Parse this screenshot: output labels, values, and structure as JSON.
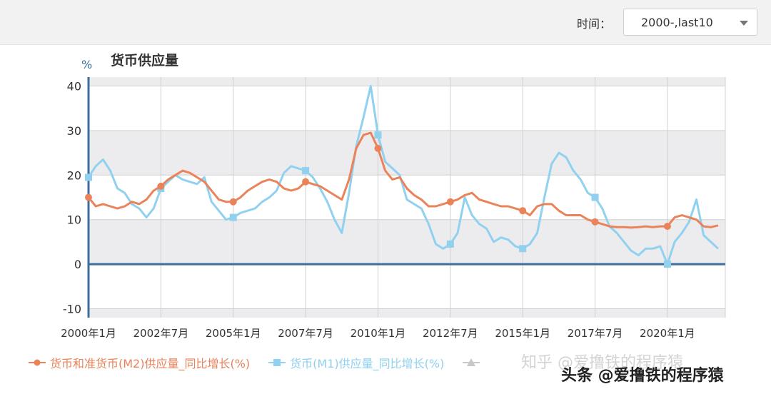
{
  "toolbar": {
    "time_label": "时间：",
    "range_select_value": "2000-,last10"
  },
  "chart": {
    "title": "货币供应量",
    "unit": "%"
  },
  "legend": [
    {
      "label": "货币和准货币(M2)供应量_同比增长(%)",
      "color": "#ea8359"
    },
    {
      "label": "货币(M1)供应量_同比增长(%)",
      "color": "#90d1f0"
    },
    {
      "label": "",
      "color": "#c8c8c8"
    }
  ],
  "watermark": {
    "line1": "知乎 @爱撸铁的程序猿",
    "line2": "头条 @爱撸铁的程序猿"
  },
  "colors": {
    "m2": "#ea8359",
    "m1": "#90d1f0",
    "axis": "#3b6e9c",
    "band": "#ececee",
    "grid": "#d0d0d0"
  },
  "chart_data": {
    "type": "line",
    "title": "货币供应量",
    "ylabel": "%",
    "ylim": [
      -12,
      42
    ],
    "y_ticks": [
      40,
      30,
      20,
      10,
      0,
      -10
    ],
    "x_ticks": [
      {
        "label": "2000年1月",
        "t": 2000.0
      },
      {
        "label": "2002年7月",
        "t": 2002.5
      },
      {
        "label": "2005年1月",
        "t": 2005.0
      },
      {
        "label": "2007年7月",
        "t": 2007.5
      },
      {
        "label": "2010年1月",
        "t": 2010.0
      },
      {
        "label": "2012年7月",
        "t": 2012.5
      },
      {
        "label": "2015年1月",
        "t": 2015.0
      },
      {
        "label": "2017年7月",
        "t": 2017.5
      },
      {
        "label": "2020年1月",
        "t": 2020.0
      }
    ],
    "xlim": [
      2000.0,
      2022.0
    ],
    "legend_position": "bottom",
    "grid": true,
    "series": [
      {
        "name": "货币和准货币(M2)供应量_同比增长(%)",
        "x": [
          2000.0,
          2000.25,
          2000.5,
          2000.75,
          2001.0,
          2001.25,
          2001.5,
          2001.75,
          2002.0,
          2002.25,
          2002.5,
          2002.75,
          2003.0,
          2003.25,
          2003.5,
          2003.75,
          2004.0,
          2004.25,
          2004.5,
          2004.75,
          2005.0,
          2005.25,
          2005.5,
          2005.75,
          2006.0,
          2006.25,
          2006.5,
          2006.75,
          2007.0,
          2007.25,
          2007.5,
          2007.75,
          2008.0,
          2008.25,
          2008.5,
          2008.75,
          2009.0,
          2009.25,
          2009.5,
          2009.75,
          2010.0,
          2010.25,
          2010.5,
          2010.75,
          2011.0,
          2011.25,
          2011.5,
          2011.75,
          2012.0,
          2012.25,
          2012.5,
          2012.75,
          2013.0,
          2013.25,
          2013.5,
          2013.75,
          2014.0,
          2014.25,
          2014.5,
          2014.75,
          2015.0,
          2015.25,
          2015.5,
          2015.75,
          2016.0,
          2016.25,
          2016.5,
          2016.75,
          2017.0,
          2017.25,
          2017.5,
          2017.75,
          2018.0,
          2018.25,
          2018.5,
          2018.75,
          2019.0,
          2019.25,
          2019.5,
          2019.75,
          2020.0,
          2020.25,
          2020.5,
          2020.75,
          2021.0,
          2021.25,
          2021.5,
          2021.75
        ],
        "values": [
          15.0,
          13.0,
          13.5,
          13.0,
          12.5,
          13.0,
          14.0,
          13.5,
          14.5,
          16.5,
          17.5,
          19.0,
          20.0,
          21.0,
          20.5,
          19.5,
          18.5,
          16.5,
          14.5,
          14.0,
          14.0,
          15.0,
          16.5,
          17.5,
          18.5,
          19.0,
          18.5,
          17.0,
          16.5,
          17.0,
          18.5,
          18.0,
          17.5,
          16.5,
          15.5,
          14.5,
          19.0,
          26.0,
          29.0,
          29.5,
          26.0,
          21.0,
          19.0,
          19.5,
          17.0,
          15.5,
          14.5,
          13.0,
          13.0,
          13.5,
          14.0,
          14.5,
          15.5,
          16.0,
          14.5,
          14.0,
          13.5,
          13.0,
          13.0,
          12.5,
          12.0,
          11.0,
          13.0,
          13.5,
          13.5,
          12.0,
          11.0,
          11.0,
          11.0,
          10.0,
          9.5,
          9.0,
          8.5,
          8.3,
          8.3,
          8.2,
          8.3,
          8.5,
          8.3,
          8.5,
          8.5,
          10.5,
          11.0,
          10.5,
          10.0,
          8.5,
          8.3,
          8.7
        ]
      },
      {
        "name": "货币(M1)供应量_同比增长(%)",
        "x": [
          2000.0,
          2000.25,
          2000.5,
          2000.75,
          2001.0,
          2001.25,
          2001.5,
          2001.75,
          2002.0,
          2002.25,
          2002.5,
          2002.75,
          2003.0,
          2003.25,
          2003.5,
          2003.75,
          2004.0,
          2004.25,
          2004.5,
          2004.75,
          2005.0,
          2005.25,
          2005.5,
          2005.75,
          2006.0,
          2006.25,
          2006.5,
          2006.75,
          2007.0,
          2007.25,
          2007.5,
          2007.75,
          2008.0,
          2008.25,
          2008.5,
          2008.75,
          2009.0,
          2009.25,
          2009.5,
          2009.75,
          2010.0,
          2010.25,
          2010.5,
          2010.75,
          2011.0,
          2011.25,
          2011.5,
          2011.75,
          2012.0,
          2012.25,
          2012.5,
          2012.75,
          2013.0,
          2013.25,
          2013.5,
          2013.75,
          2014.0,
          2014.25,
          2014.5,
          2014.75,
          2015.0,
          2015.25,
          2015.5,
          2015.75,
          2016.0,
          2016.25,
          2016.5,
          2016.75,
          2017.0,
          2017.25,
          2017.5,
          2017.75,
          2018.0,
          2018.25,
          2018.5,
          2018.75,
          2019.0,
          2019.25,
          2019.5,
          2019.75,
          2020.0,
          2020.25,
          2020.5,
          2020.75,
          2021.0,
          2021.25,
          2021.5,
          2021.75
        ],
        "values": [
          19.5,
          22.0,
          23.5,
          21.0,
          17.0,
          16.0,
          13.5,
          12.5,
          10.5,
          12.5,
          17.0,
          18.5,
          20.0,
          19.0,
          18.5,
          18.0,
          19.5,
          14.0,
          12.0,
          10.0,
          10.5,
          11.5,
          12.0,
          12.5,
          14.0,
          15.0,
          16.5,
          20.5,
          22.0,
          21.5,
          21.0,
          19.5,
          17.0,
          14.0,
          10.0,
          7.0,
          16.0,
          26.5,
          33.0,
          40.0,
          29.0,
          23.0,
          21.5,
          20.0,
          14.5,
          13.5,
          12.5,
          9.0,
          4.5,
          3.5,
          4.5,
          7.0,
          15.0,
          11.0,
          9.0,
          8.0,
          5.0,
          6.0,
          5.5,
          4.0,
          3.5,
          4.5,
          7.0,
          15.0,
          22.5,
          25.0,
          24.0,
          21.0,
          19.0,
          16.0,
          15.0,
          12.5,
          8.5,
          7.0,
          5.0,
          3.0,
          2.0,
          3.5,
          3.5,
          4.0,
          0.0,
          5.0,
          7.0,
          9.5,
          14.5,
          6.5,
          5.0,
          3.5
        ]
      }
    ],
    "marker_x": [
      2000.0,
      2002.5,
      2005.0,
      2007.5,
      2010.0,
      2012.5,
      2015.0,
      2017.5,
      2020.0
    ]
  }
}
